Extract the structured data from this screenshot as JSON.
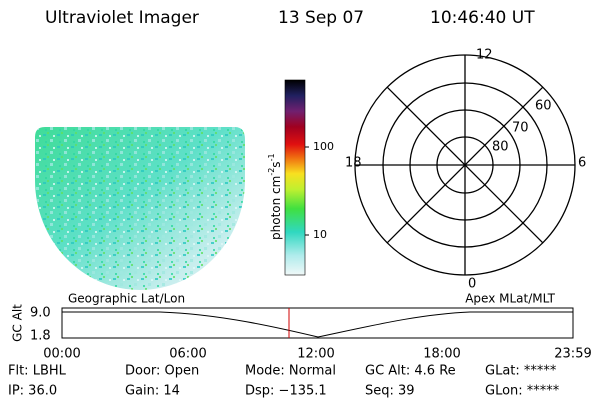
{
  "header": {
    "instrument": "Ultraviolet Imager",
    "date": "13 Sep 07",
    "time": "10:46:40 UT"
  },
  "colorbar": {
    "label_parts": [
      "photon cm",
      "-2",
      "s",
      "-1"
    ],
    "ticks": [
      "100",
      "10"
    ]
  },
  "polar": {
    "labels": [
      "12",
      "0",
      "18",
      "6",
      "60",
      "70",
      "80"
    ]
  },
  "timeline": {
    "left_title": "Geographic Lat/Lon",
    "right_title": "Apex MLat/MLT",
    "y_label": "GC Alt",
    "y_ticks": [
      "9.0",
      "1.8"
    ],
    "x_ticks": [
      "00:00",
      "06:00",
      "12:00",
      "18:00",
      "23:59"
    ]
  },
  "info": {
    "rows": [
      [
        "Flt: LBHL",
        "Door: Open",
        "Mode: Normal",
        "GC Alt: 4.6 Re",
        "GLat: *****"
      ],
      [
        "IP: 36.0",
        "Gain: 14",
        "Dsp: −135.1",
        "Seq: 39",
        "GLon: *****"
      ]
    ]
  }
}
